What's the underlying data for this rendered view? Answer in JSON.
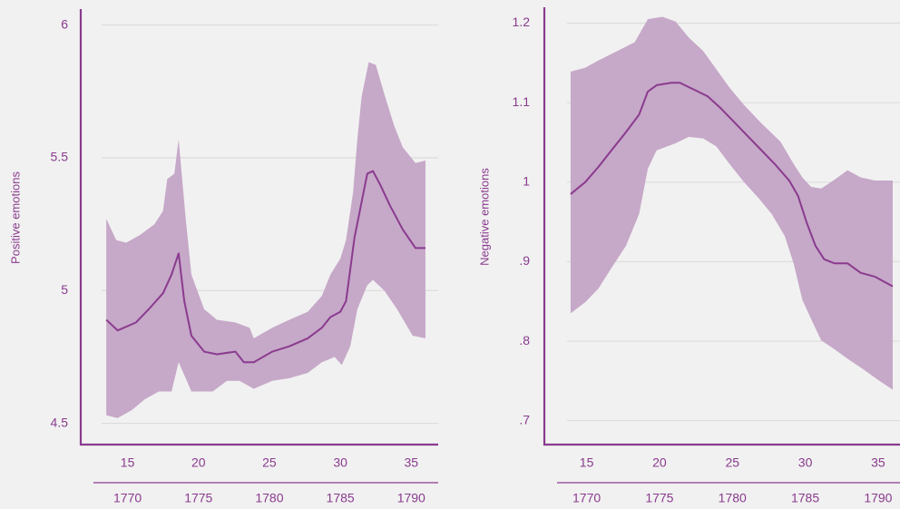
{
  "chart_data": [
    {
      "type": "band-line",
      "ylabel": "Positive emotions",
      "color": "#8a3b8e",
      "band_color": "#c6a8c8",
      "xlim": [
        11.7,
        36.9
      ],
      "xticks": [
        15,
        20,
        25,
        30,
        35
      ],
      "x2lim": [
        1766.7,
        1791.9
      ],
      "x2ticks": [
        1770,
        1775,
        1780,
        1785,
        1790
      ],
      "ylim": [
        4.42,
        6.06
      ],
      "yticks": [
        4.5,
        5,
        5.5,
        6
      ],
      "grid": true,
      "mean": {
        "x": [
          13.5,
          14.3,
          15.6,
          16.5,
          17.5,
          18.1,
          18.6,
          19.0,
          19.5,
          20.4,
          21.3,
          22.6,
          23.2,
          23.9,
          25.2,
          26.4,
          27.7,
          28.7,
          29.3,
          30.0,
          30.4,
          31.0,
          31.9,
          32.3,
          32.8,
          33.5,
          34.4,
          35.3,
          36.0
        ],
        "values": [
          4.89,
          4.85,
          4.88,
          4.93,
          4.99,
          5.06,
          5.14,
          4.96,
          4.83,
          4.77,
          4.76,
          4.77,
          4.73,
          4.73,
          4.77,
          4.79,
          4.82,
          4.86,
          4.9,
          4.92,
          4.96,
          5.2,
          5.44,
          5.45,
          5.4,
          5.32,
          5.23,
          5.16,
          5.16
        ]
      },
      "upper": {
        "x": [
          13.5,
          14.2,
          14.9,
          15.9,
          16.9,
          17.5,
          17.8,
          18.3,
          18.6,
          19.1,
          19.5,
          20.4,
          21.3,
          22.6,
          23.6,
          23.9,
          25.2,
          26.4,
          27.7,
          28.7,
          29.3,
          30.0,
          30.4,
          30.9,
          31.2,
          31.5,
          32.0,
          32.5,
          33.1,
          33.8,
          34.4,
          35.3,
          36.0
        ],
        "values": [
          5.27,
          5.19,
          5.18,
          5.21,
          5.25,
          5.3,
          5.42,
          5.44,
          5.57,
          5.27,
          5.06,
          4.93,
          4.89,
          4.88,
          4.86,
          4.82,
          4.86,
          4.89,
          4.92,
          4.98,
          5.06,
          5.12,
          5.19,
          5.37,
          5.57,
          5.73,
          5.86,
          5.85,
          5.74,
          5.62,
          5.54,
          5.48,
          5.49
        ]
      },
      "lower": {
        "x": [
          13.5,
          14.3,
          15.3,
          16.2,
          17.2,
          18.1,
          18.6,
          19.1,
          19.5,
          21.0,
          22.0,
          22.9,
          23.9,
          25.2,
          26.4,
          27.7,
          28.7,
          29.6,
          30.1,
          30.7,
          31.2,
          31.9,
          32.3,
          33.1,
          34.0,
          35.1,
          36.0
        ],
        "values": [
          4.53,
          4.52,
          4.55,
          4.59,
          4.62,
          4.62,
          4.73,
          4.67,
          4.62,
          4.62,
          4.66,
          4.66,
          4.63,
          4.66,
          4.67,
          4.69,
          4.73,
          4.75,
          4.72,
          4.79,
          4.93,
          5.02,
          5.04,
          5.0,
          4.93,
          4.83,
          4.82
        ]
      }
    },
    {
      "type": "band-line",
      "ylabel": "Negative emotions",
      "color": "#8a3b8e",
      "band_color": "#c6a8c8",
      "xlim": [
        12.1,
        36.5
      ],
      "xticks": [
        15,
        20,
        25,
        30,
        35
      ],
      "x2lim": [
        1767.1,
        1791.5
      ],
      "x2ticks": [
        1770,
        1775,
        1780,
        1785,
        1790
      ],
      "ylim": [
        0.67,
        1.22
      ],
      "yticks": [
        {
          "value": 0.7,
          "label": ".7"
        },
        {
          "value": 0.8,
          "label": ".8"
        },
        {
          "value": 0.9,
          "label": ".9"
        },
        1,
        1.1,
        1.2
      ],
      "grid": true,
      "mean": {
        "x": [
          13.9,
          14.9,
          15.8,
          16.7,
          17.7,
          18.6,
          19.2,
          19.8,
          20.8,
          21.4,
          22.3,
          23.3,
          24.2,
          25.1,
          26.1,
          27.0,
          27.9,
          28.9,
          29.5,
          30.1,
          30.7,
          31.3,
          32.0,
          32.9,
          33.8,
          34.8,
          36.0
        ],
        "values": [
          0.985,
          1.0,
          1.019,
          1.04,
          1.063,
          1.085,
          1.114,
          1.122,
          1.125,
          1.125,
          1.117,
          1.108,
          1.093,
          1.076,
          1.057,
          1.04,
          1.023,
          1.002,
          0.983,
          0.949,
          0.92,
          0.903,
          0.898,
          0.898,
          0.886,
          0.881,
          0.869
        ]
      },
      "upper": {
        "x": [
          13.9,
          14.9,
          15.8,
          17.1,
          18.3,
          19.2,
          20.2,
          21.1,
          22.0,
          23.0,
          23.9,
          24.8,
          25.8,
          27.0,
          28.3,
          29.2,
          29.8,
          30.4,
          31.1,
          32.0,
          32.9,
          33.8,
          34.8,
          36.0
        ],
        "values": [
          1.139,
          1.144,
          1.153,
          1.165,
          1.176,
          1.205,
          1.208,
          1.202,
          1.182,
          1.165,
          1.142,
          1.119,
          1.097,
          1.074,
          1.051,
          1.023,
          1.006,
          0.994,
          0.992,
          1.003,
          1.015,
          1.006,
          1.002,
          1.002
        ]
      },
      "lower": {
        "x": [
          13.9,
          14.9,
          15.8,
          16.7,
          17.7,
          18.6,
          19.2,
          19.8,
          21.1,
          22.0,
          23.0,
          23.9,
          24.8,
          25.8,
          26.8,
          27.7,
          28.6,
          29.2,
          29.8,
          30.5,
          31.1,
          32.0,
          32.9,
          33.8,
          35.1,
          36.0
        ],
        "values": [
          0.835,
          0.849,
          0.866,
          0.892,
          0.92,
          0.96,
          1.017,
          1.04,
          1.049,
          1.057,
          1.055,
          1.045,
          1.023,
          1.0,
          0.98,
          0.96,
          0.932,
          0.898,
          0.852,
          0.824,
          0.801,
          0.79,
          0.778,
          0.767,
          0.75,
          0.739
        ]
      }
    }
  ]
}
